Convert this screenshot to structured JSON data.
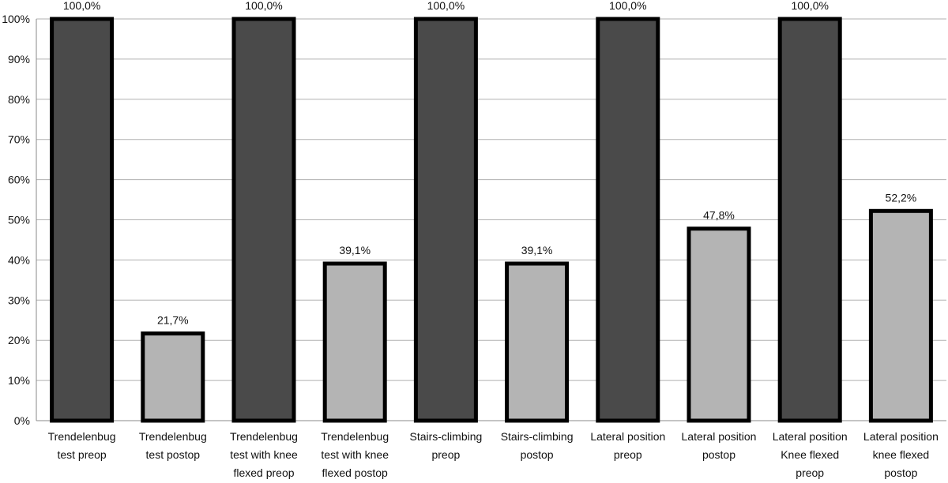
{
  "chart_data": {
    "type": "bar",
    "title": "",
    "xlabel": "",
    "ylabel": "",
    "ylim": [
      0,
      100
    ],
    "yticks": [
      "0%",
      "10%",
      "20%",
      "30%",
      "40%",
      "50%",
      "60%",
      "70%",
      "80%",
      "90%",
      "100%"
    ],
    "grid": true,
    "legend": "none",
    "categories": [
      [
        "Trendelenbug",
        "test preop"
      ],
      [
        "Trendelenbug",
        "test postop"
      ],
      [
        "Trendelenbug",
        "test with knee",
        "flexed  preop"
      ],
      [
        "Trendelenbug",
        "test with knee",
        "flexed postop"
      ],
      [
        "Stairs-climbing",
        "preop"
      ],
      [
        "Stairs-climbing",
        "postop"
      ],
      [
        "Lateral position",
        "preop"
      ],
      [
        "Lateral position",
        "postop"
      ],
      [
        "Lateral position",
        "Knee flexed",
        "preop"
      ],
      [
        "Lateral position",
        "knee flexed",
        "postop"
      ]
    ],
    "values": [
      100.0,
      21.7,
      100.0,
      39.1,
      100.0,
      39.1,
      100.0,
      47.8,
      100.0,
      52.2
    ],
    "value_labels": [
      "100,0%",
      "21,7%",
      "100,0%",
      "39,1%",
      "100,0%",
      "39,1%",
      "100,0%",
      "47,8%",
      "100,0%",
      "52,2%"
    ],
    "colors": {
      "preop": "#4a4a4a",
      "postop": "#b4b4b4",
      "outline": "#000000"
    }
  }
}
